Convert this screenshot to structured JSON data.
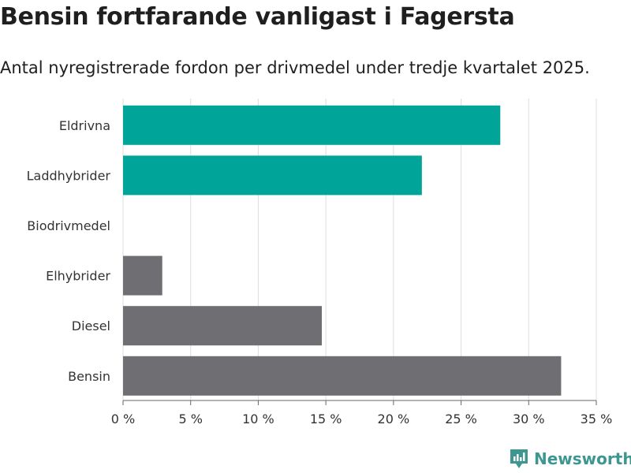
{
  "title": "Bensin fortfarande vanligast i Fagersta",
  "subtitle": "Antal nyregistrerade fordon per drivmedel under tredje kvartalet 2025.",
  "brand": "Newsworthy",
  "colors": {
    "highlight": "#00a499",
    "neutral": "#6f6e73",
    "grid": "#dddddd",
    "brand": "#3d9690"
  },
  "chart_data": {
    "type": "bar",
    "orientation": "horizontal",
    "categories": [
      "Eldrivna",
      "Laddhybrider",
      "Biodrivmedel",
      "Elhybrider",
      "Diesel",
      "Bensin"
    ],
    "values": [
      27.9,
      22.1,
      0,
      2.9,
      14.7,
      32.4
    ],
    "highlight": [
      true,
      true,
      true,
      false,
      false,
      false
    ],
    "xlim": [
      0,
      35
    ],
    "xticks": [
      0,
      5,
      10,
      15,
      20,
      25,
      30,
      35
    ],
    "tick_suffix": " %",
    "grid": true
  }
}
